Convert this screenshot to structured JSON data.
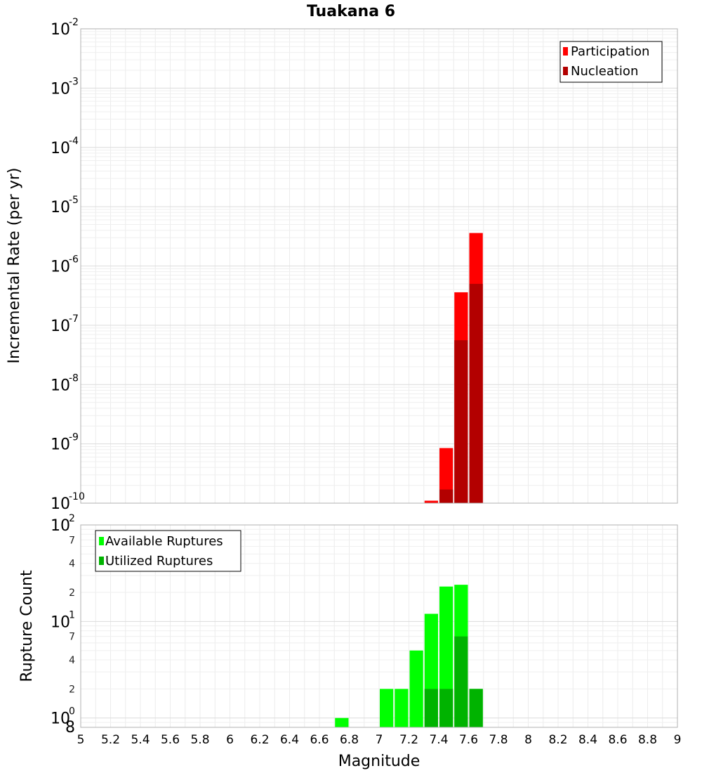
{
  "chart_data": [
    {
      "type": "bar",
      "title": "Tuakana 6",
      "xlabel": "",
      "ylabel": "Incremental Rate (per yr)",
      "yscale": "log",
      "ylim": [
        1e-10,
        0.01
      ],
      "xlim": [
        5,
        9
      ],
      "bin_width": 0.1,
      "grid": true,
      "legend_position": "top-right",
      "y_ticks": [
        {
          "base": "10",
          "exp": "-10",
          "value": 1e-10
        },
        {
          "base": "10",
          "exp": "-9",
          "value": 1e-09
        },
        {
          "base": "10",
          "exp": "-8",
          "value": 1e-08
        },
        {
          "base": "10",
          "exp": "-7",
          "value": 1e-07
        },
        {
          "base": "10",
          "exp": "-6",
          "value": 1e-06
        },
        {
          "base": "10",
          "exp": "-5",
          "value": 1e-05
        },
        {
          "base": "10",
          "exp": "-4",
          "value": 0.0001
        },
        {
          "base": "10",
          "exp": "-3",
          "value": 0.001
        },
        {
          "base": "10",
          "exp": "-2",
          "value": 0.01
        }
      ],
      "series": [
        {
          "name": "Participation",
          "color": "#ff0000",
          "x": [
            7.35,
            7.45,
            7.55,
            7.65
          ],
          "values": [
            1.1e-10,
            8.5e-10,
            3.6e-07,
            3.6e-06
          ]
        },
        {
          "name": "Nucleation",
          "color": "#b30000",
          "x": [
            7.45,
            7.55,
            7.65
          ],
          "values": [
            1.7e-10,
            5.6e-08,
            5e-07
          ]
        }
      ]
    },
    {
      "type": "bar",
      "title": "",
      "xlabel": "Magnitude",
      "ylabel": "Rupture Count",
      "yscale": "log",
      "ylim": [
        0.8,
        100
      ],
      "xlim": [
        5,
        9
      ],
      "bin_width": 0.1,
      "grid": true,
      "legend_position": "top-left",
      "y_ticks": [
        {
          "base": "10",
          "exp": "0",
          "value": 1,
          "major": true
        },
        {
          "label": "2",
          "value": 2
        },
        {
          "label": "4",
          "value": 4
        },
        {
          "label": "7",
          "value": 7
        },
        {
          "base": "10",
          "exp": "1",
          "value": 10,
          "major": true
        },
        {
          "label": "2",
          "value": 20
        },
        {
          "label": "4",
          "value": 40
        },
        {
          "label": "7",
          "value": 70
        },
        {
          "base": "10",
          "exp": "2",
          "value": 100,
          "major": true
        }
      ],
      "y_bottom_label": "8",
      "x_ticks": [
        "5",
        "5.2",
        "5.4",
        "5.6",
        "5.8",
        "6",
        "6.2",
        "6.4",
        "6.6",
        "6.8",
        "7",
        "7.2",
        "7.4",
        "7.6",
        "7.8",
        "8",
        "8.2",
        "8.4",
        "8.6",
        "8.8",
        "9"
      ],
      "series": [
        {
          "name": "Available Ruptures",
          "color": "#00ff00",
          "x": [
            6.75,
            7.05,
            7.15,
            7.25,
            7.35,
            7.45,
            7.55,
            7.65
          ],
          "values": [
            1,
            2,
            2,
            5,
            12,
            23,
            24,
            2
          ]
        },
        {
          "name": "Utilized Ruptures",
          "color": "#00b300",
          "x": [
            7.35,
            7.45,
            7.55,
            7.65
          ],
          "values": [
            2,
            2,
            7,
            2
          ]
        }
      ]
    }
  ]
}
